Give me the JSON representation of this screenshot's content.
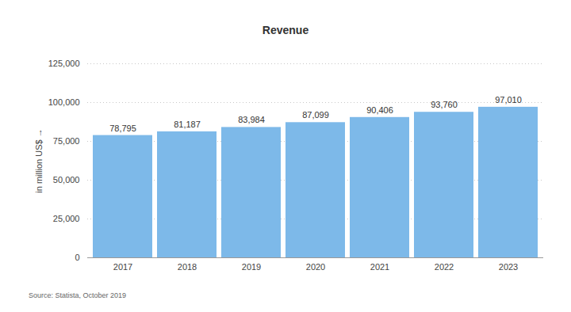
{
  "chart_data": {
    "type": "bar",
    "title": "Revenue",
    "y_label": "in million US$",
    "source": "Source: Statista, October 2019",
    "categories": [
      "2017",
      "2018",
      "2019",
      "2020",
      "2021",
      "2022",
      "2023"
    ],
    "values": [
      78795,
      81187,
      83984,
      87099,
      90406,
      93760,
      97010
    ],
    "value_labels": [
      "78,795",
      "81,187",
      "83,984",
      "87,099",
      "90,406",
      "93,760",
      "97,010"
    ],
    "color": "#7db9e9",
    "ylim": [
      0,
      125000
    ],
    "yticks": [
      0,
      {
        "value": 25000,
        "label": "25,000"
      },
      {
        "value": 50000,
        "label": "50,000"
      },
      {
        "value": 75000,
        "label": "75,000"
      },
      {
        "value": 100000,
        "label": "100,000"
      },
      {
        "value": 125000,
        "label": "125,000"
      }
    ],
    "grid": true,
    "data_labels": true
  }
}
